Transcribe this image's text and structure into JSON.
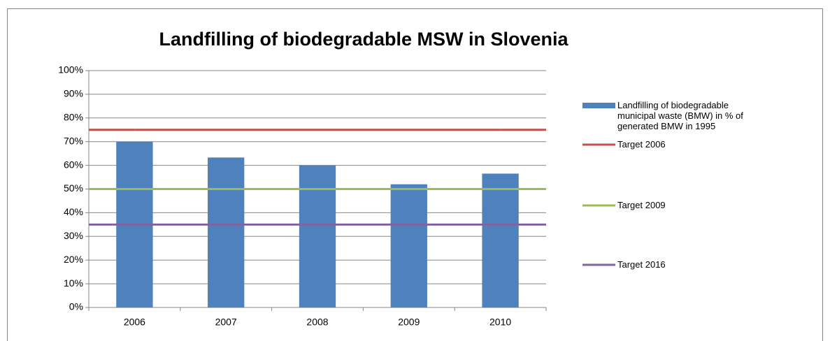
{
  "chart_data": {
    "type": "bar",
    "title": "Landfilling of biodegradable MSW in Slovenia",
    "categories": [
      "2006",
      "2007",
      "2008",
      "2009",
      "2010"
    ],
    "series": [
      {
        "name": "Landfilling of biodegradable municipal waste (BMW) in  % of generated BMW in 1995",
        "type": "bar",
        "color": "#4f81bd",
        "values": [
          70,
          63.3,
          60,
          52,
          56.5
        ]
      },
      {
        "name": "Target 2006",
        "type": "line",
        "color": "#c0504d",
        "values": [
          75,
          75,
          75,
          75,
          75
        ]
      },
      {
        "name": "Target 2009",
        "type": "line",
        "color": "#9bbb59",
        "values": [
          50,
          50,
          50,
          50,
          50
        ]
      },
      {
        "name": "Target 2016",
        "type": "line",
        "color": "#8064a2",
        "values": [
          35,
          35,
          35,
          35,
          35
        ]
      }
    ],
    "ylim": [
      0,
      100
    ],
    "yticks": [
      {
        "value": 0,
        "label": "0%"
      },
      {
        "value": 10,
        "label": "10%"
      },
      {
        "value": 20,
        "label": "20%"
      },
      {
        "value": 30,
        "label": "30%"
      },
      {
        "value": 40,
        "label": "40%"
      },
      {
        "value": 50,
        "label": "50%"
      },
      {
        "value": 60,
        "label": "60%"
      },
      {
        "value": 70,
        "label": "70%"
      },
      {
        "value": 80,
        "label": "80%"
      },
      {
        "value": 90,
        "label": "90%"
      },
      {
        "value": 100,
        "label": "100%"
      }
    ],
    "grid": true
  }
}
